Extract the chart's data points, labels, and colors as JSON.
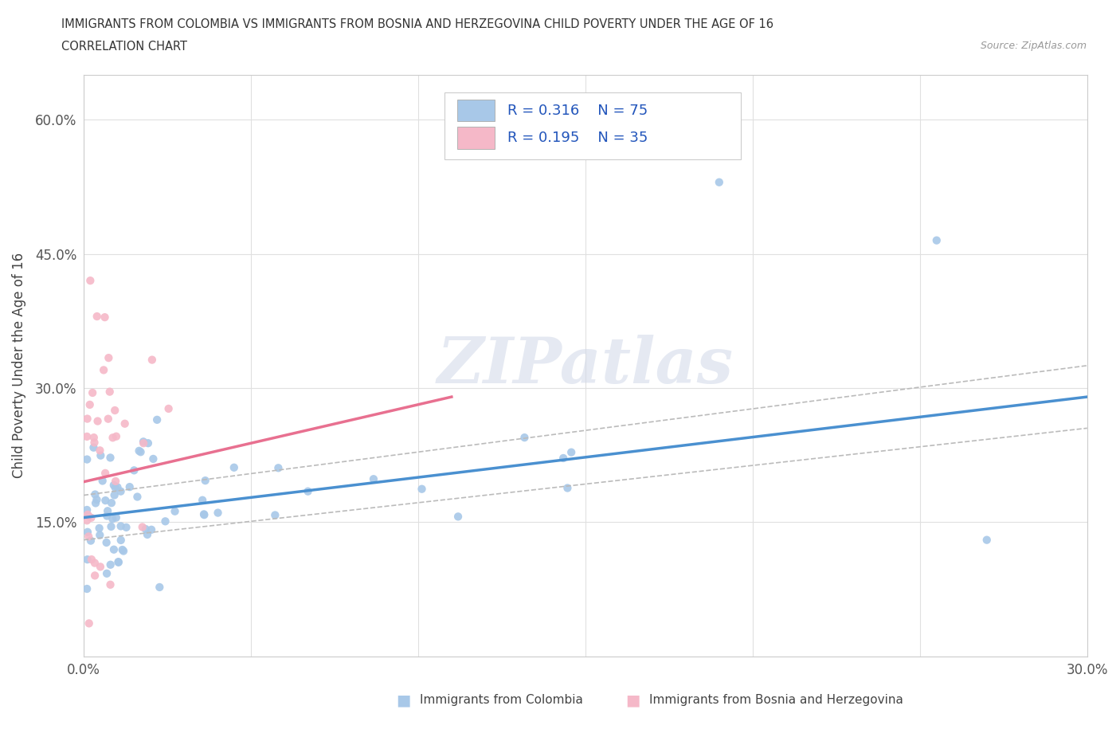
{
  "title_line1": "IMMIGRANTS FROM COLOMBIA VS IMMIGRANTS FROM BOSNIA AND HERZEGOVINA CHILD POVERTY UNDER THE AGE OF 16",
  "title_line2": "CORRELATION CHART",
  "source_text": "Source: ZipAtlas.com",
  "ylabel": "Child Poverty Under the Age of 16",
  "xlim": [
    0.0,
    0.3
  ],
  "ylim": [
    0.0,
    0.65
  ],
  "colombia_color": "#a8c8e8",
  "bosnia_color": "#f5b8c8",
  "colombia_line_color": "#4a90d0",
  "bosnia_line_color": "#e87090",
  "colombia_dashed_color": "#bbbbbb",
  "R_colombia": 0.316,
  "N_colombia": 75,
  "R_bosnia": 0.195,
  "N_bosnia": 35,
  "watermark_text": "ZIPatlas",
  "watermark_color": "#cccccc",
  "background_color": "#ffffff",
  "grid_color": "#e0e0e0"
}
